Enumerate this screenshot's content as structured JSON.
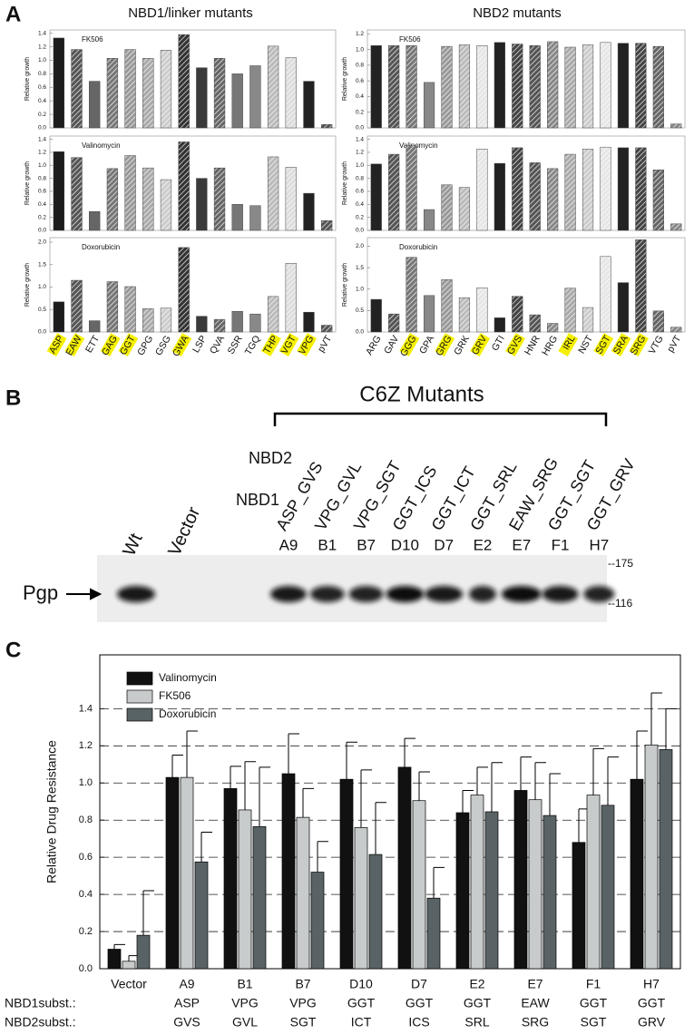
{
  "panel_labels": [
    "A",
    "B",
    "C"
  ],
  "panel_a_titles": [
    "NBD1/linker mutants",
    "NBD2 mutants"
  ],
  "chart_data": [
    {
      "type": "bar",
      "title": "FK506",
      "y_label": "Relative growth",
      "values": [
        1.33,
        1.16,
        0.69,
        1.03,
        1.16,
        1.03,
        1.15,
        1.38,
        0.89,
        1.03,
        0.8,
        0.92,
        1.21,
        1.04,
        0.69,
        0.05
      ],
      "colors": [
        "#1c1c1c",
        "#555555",
        "#666666",
        "#777777",
        "#999999",
        "#aaaaaa",
        "#cccccc",
        "#333333",
        "#3a3a3a",
        "#666666",
        "#777777",
        "#888888",
        "#bbbbbb",
        "#dddddd",
        "#222222",
        "#555555"
      ],
      "hatched": [
        false,
        true,
        false,
        true,
        true,
        true,
        true,
        true,
        false,
        true,
        false,
        false,
        true,
        true,
        false,
        true
      ],
      "ylim": [
        0,
        1.45
      ],
      "yticks": [
        {
          "value": 0,
          "label": "0.0"
        },
        {
          "value": 0.2,
          "label": "0.2"
        },
        {
          "value": 0.4,
          "label": "0.4"
        },
        {
          "value": 0.6,
          "label": "0.6"
        },
        {
          "value": 0.8,
          "label": "0.8"
        },
        {
          "value": 1.0,
          "label": "1.0"
        },
        {
          "value": 1.2,
          "label": "1.2"
        },
        {
          "value": 1.4,
          "label": "1.4"
        }
      ]
    },
    {
      "type": "bar",
      "title": "Valinomycin",
      "y_label": "Relative growth",
      "values": [
        1.21,
        1.12,
        0.29,
        0.95,
        1.15,
        0.96,
        0.78,
        1.36,
        0.8,
        0.96,
        0.4,
        0.38,
        1.13,
        0.97,
        0.57,
        0.15
      ],
      "colors": [
        "#1c1c1c",
        "#555555",
        "#666666",
        "#777777",
        "#999999",
        "#aaaaaa",
        "#cccccc",
        "#333333",
        "#3a3a3a",
        "#666666",
        "#777777",
        "#888888",
        "#bbbbbb",
        "#dddddd",
        "#222222",
        "#555555"
      ],
      "hatched": [
        false,
        true,
        false,
        true,
        true,
        true,
        true,
        true,
        false,
        true,
        false,
        false,
        true,
        true,
        false,
        true
      ],
      "ylim": [
        0,
        1.45
      ],
      "yticks": [
        {
          "value": 0,
          "label": "0.0"
        },
        {
          "value": 0.2,
          "label": "0.2"
        },
        {
          "value": 0.4,
          "label": "0.4"
        },
        {
          "value": 0.6,
          "label": "0.6"
        },
        {
          "value": 0.8,
          "label": "0.8"
        },
        {
          "value": 1.0,
          "label": "1.0"
        },
        {
          "value": 1.2,
          "label": "1.2"
        },
        {
          "value": 1.4,
          "label": "1.4"
        }
      ]
    },
    {
      "type": "bar",
      "title": "Doxorubicin",
      "y_label": "Relative growth",
      "categories": [
        "ASP",
        "EAW",
        "ETT",
        "GAG",
        "GGT",
        "GPG",
        "GSG",
        "GWA",
        "LSP",
        "QVA",
        "SSR",
        "TGQ",
        "THP",
        "VGT",
        "VPG",
        "pVT"
      ],
      "highlighted": [
        true,
        true,
        false,
        true,
        true,
        false,
        false,
        true,
        false,
        false,
        false,
        false,
        true,
        true,
        true,
        false
      ],
      "values": [
        0.67,
        1.15,
        0.25,
        1.12,
        1.01,
        0.52,
        0.53,
        1.88,
        0.35,
        0.28,
        0.46,
        0.4,
        0.79,
        1.53,
        0.44,
        0.15
      ],
      "colors": [
        "#1c1c1c",
        "#555555",
        "#666666",
        "#777777",
        "#999999",
        "#aaaaaa",
        "#cccccc",
        "#333333",
        "#3a3a3a",
        "#666666",
        "#777777",
        "#888888",
        "#bbbbbb",
        "#dddddd",
        "#222222",
        "#555555"
      ],
      "hatched": [
        false,
        true,
        false,
        true,
        true,
        true,
        true,
        true,
        false,
        true,
        false,
        false,
        true,
        true,
        false,
        true
      ],
      "ylim": [
        0,
        2.1
      ],
      "yticks": [
        {
          "value": 0,
          "label": "0.0"
        },
        {
          "value": 0.5,
          "label": "0.5"
        },
        {
          "value": 1.0,
          "label": "1.0"
        },
        {
          "value": 1.5,
          "label": "1.5"
        },
        {
          "value": 2.0,
          "label": "2.0"
        }
      ]
    },
    {
      "type": "bar",
      "title": "FK506",
      "y_label": "Relative growth",
      "values": [
        1.05,
        1.05,
        1.05,
        0.58,
        1.04,
        1.06,
        1.05,
        1.09,
        1.07,
        1.05,
        1.1,
        1.03,
        1.06,
        1.09,
        1.08,
        1.08,
        1.04,
        0.05
      ],
      "colors": [
        "#222222",
        "#555555",
        "#777777",
        "#888888",
        "#999999",
        "#bbbbbb",
        "#e6e6e6",
        "#222222",
        "#444444",
        "#555555",
        "#888888",
        "#aaaaaa",
        "#cccccc",
        "#e6e6e6",
        "#222222",
        "#444444",
        "#666666",
        "#888888"
      ],
      "hatched": [
        false,
        true,
        true,
        false,
        true,
        true,
        true,
        false,
        true,
        true,
        true,
        true,
        true,
        true,
        false,
        true,
        true,
        true
      ],
      "ylim": [
        0,
        1.25
      ],
      "yticks": [
        {
          "value": 0,
          "label": "0.0"
        },
        {
          "value": 0.2,
          "label": "0.2"
        },
        {
          "value": 0.4,
          "label": "0.4"
        },
        {
          "value": 0.6,
          "label": "0.6"
        },
        {
          "value": 0.8,
          "label": "0.8"
        },
        {
          "value": 1.0,
          "label": "1.0"
        },
        {
          "value": 1.2,
          "label": "1.2"
        }
      ]
    },
    {
      "type": "bar",
      "title": "Valinomycin",
      "y_label": "Relative growth",
      "values": [
        1.02,
        1.17,
        1.3,
        0.32,
        0.7,
        0.66,
        1.25,
        1.03,
        1.27,
        1.04,
        0.95,
        1.17,
        1.25,
        1.28,
        1.27,
        1.27,
        0.93,
        0.1
      ],
      "colors": [
        "#222222",
        "#555555",
        "#777777",
        "#888888",
        "#999999",
        "#bbbbbb",
        "#e6e6e6",
        "#222222",
        "#444444",
        "#555555",
        "#888888",
        "#aaaaaa",
        "#cccccc",
        "#e6e6e6",
        "#222222",
        "#444444",
        "#666666",
        "#888888"
      ],
      "hatched": [
        false,
        true,
        true,
        false,
        true,
        true,
        true,
        false,
        true,
        true,
        true,
        true,
        true,
        true,
        false,
        true,
        true,
        true
      ],
      "ylim": [
        0,
        1.45
      ],
      "yticks": [
        {
          "value": 0,
          "label": "0.0"
        },
        {
          "value": 0.2,
          "label": "0.2"
        },
        {
          "value": 0.4,
          "label": "0.4"
        },
        {
          "value": 0.6,
          "label": "0.6"
        },
        {
          "value": 0.8,
          "label": "0.8"
        },
        {
          "value": 1.0,
          "label": "1.0"
        },
        {
          "value": 1.2,
          "label": "1.2"
        },
        {
          "value": 1.4,
          "label": "1.4"
        }
      ]
    },
    {
      "type": "bar",
      "title": "Doxorubicin",
      "y_label": "Relative growth",
      "categories": [
        "ARG",
        "GAV",
        "GGG",
        "GPA",
        "GRG",
        "GRK",
        "GRV",
        "GTI",
        "GVS",
        "HNR",
        "HRG",
        "IRL",
        "NST",
        "SGT",
        "SRA",
        "SRG",
        "VTG",
        "pVT"
      ],
      "highlighted": [
        false,
        false,
        true,
        false,
        true,
        false,
        true,
        false,
        true,
        false,
        false,
        true,
        false,
        true,
        true,
        true,
        false,
        false
      ],
      "values": [
        0.76,
        0.42,
        1.74,
        0.85,
        1.22,
        0.8,
        1.03,
        0.33,
        0.83,
        0.4,
        0.2,
        1.02,
        0.57,
        1.76,
        1.15,
        2.15,
        0.49,
        0.11
      ],
      "colors": [
        "#222222",
        "#555555",
        "#777777",
        "#888888",
        "#999999",
        "#bbbbbb",
        "#e6e6e6",
        "#222222",
        "#444444",
        "#555555",
        "#888888",
        "#aaaaaa",
        "#cccccc",
        "#e6e6e6",
        "#222222",
        "#444444",
        "#666666",
        "#888888"
      ],
      "hatched": [
        false,
        true,
        true,
        false,
        true,
        true,
        true,
        false,
        true,
        true,
        true,
        true,
        true,
        true,
        false,
        true,
        true,
        true
      ],
      "ylim": [
        0,
        2.2
      ],
      "yticks": [
        {
          "value": 0,
          "label": "0.0"
        },
        {
          "value": 0.5,
          "label": "0.5"
        },
        {
          "value": 1.0,
          "label": "1.0"
        },
        {
          "value": 1.5,
          "label": "1.5"
        },
        {
          "value": 2.0,
          "label": "2.0"
        }
      ]
    },
    {
      "type": "grouped_bar",
      "y_label": "Relative Drug Resistance",
      "categories": [
        "Vector",
        "A9",
        "B1",
        "B7",
        "D10",
        "D7",
        "E2",
        "E7",
        "F1",
        "H7"
      ],
      "x_label_rows": [
        {
          "label": "NBD1subst.:",
          "values": [
            null,
            "ASP",
            "VPG",
            "VPG",
            "GGT",
            "GGT",
            "GGT",
            "EAW",
            "GGT",
            "GGT"
          ]
        },
        {
          "label": "NBD2subst.:",
          "values": [
            null,
            "GVS",
            "GVL",
            "SGT",
            "ICT",
            "ICS",
            "SRL",
            "SRG",
            "SGT",
            "GRV"
          ]
        }
      ],
      "series": [
        {
          "name": "Valinomycin",
          "color": "#111111",
          "values": [
            0.105,
            1.03,
            0.97,
            1.05,
            1.02,
            1.085,
            0.84,
            0.96,
            0.68,
            1.02
          ],
          "errors": [
            0.025,
            0.12,
            0.12,
            0.215,
            0.2,
            0.155,
            0.12,
            0.18,
            0.18,
            0.26
          ]
        },
        {
          "name": "FK506",
          "color": "#c8cbcb",
          "values": [
            0.04,
            1.03,
            0.855,
            0.815,
            0.76,
            0.905,
            0.935,
            0.91,
            0.935,
            1.205
          ],
          "errors": [
            0.03,
            0.25,
            0.26,
            0.155,
            0.31,
            0.155,
            0.15,
            0.2,
            0.25,
            0.28
          ]
        },
        {
          "name": "Doxorubicin",
          "color": "#596366",
          "values": [
            0.18,
            0.575,
            0.765,
            0.52,
            0.615,
            0.38,
            0.845,
            0.825,
            0.88,
            1.18
          ],
          "errors": [
            0.24,
            0.16,
            0.32,
            0.165,
            0.28,
            0.165,
            0.265,
            0.225,
            0.26,
            0.22
          ]
        }
      ],
      "ylim": [
        0,
        1.69
      ],
      "yticks": [
        {
          "value": 0,
          "label": "0.0"
        },
        {
          "value": 0.2,
          "label": "0.2"
        },
        {
          "value": 0.4,
          "label": "0.4"
        },
        {
          "value": 0.6,
          "label": "0.6"
        },
        {
          "value": 0.8,
          "label": "0.8"
        },
        {
          "value": 1.0,
          "label": "1.0"
        },
        {
          "value": 1.2,
          "label": "1.2"
        },
        {
          "value": 1.4,
          "label": "1.4"
        }
      ],
      "grid": true,
      "legend": "upper-left"
    }
  ],
  "blot": {
    "title": "C6Z Mutants",
    "row_labels": [
      "NBD2",
      "NBD1"
    ],
    "constructs": [
      "ASP_GVS",
      "VPG_GVL",
      "VPG_SGT",
      "GGT_ICS",
      "GGT_ICT",
      "GGT_SRL",
      "EAW_SRG",
      "GGT_SGT",
      "GGT_GRV"
    ],
    "lanes": [
      "Wt",
      "Vector",
      "A9",
      "B1",
      "B7",
      "D10",
      "D7",
      "E2",
      "E7",
      "F1",
      "H7"
    ],
    "protein": "Pgp",
    "markers": [
      "--175",
      "--116"
    ]
  }
}
